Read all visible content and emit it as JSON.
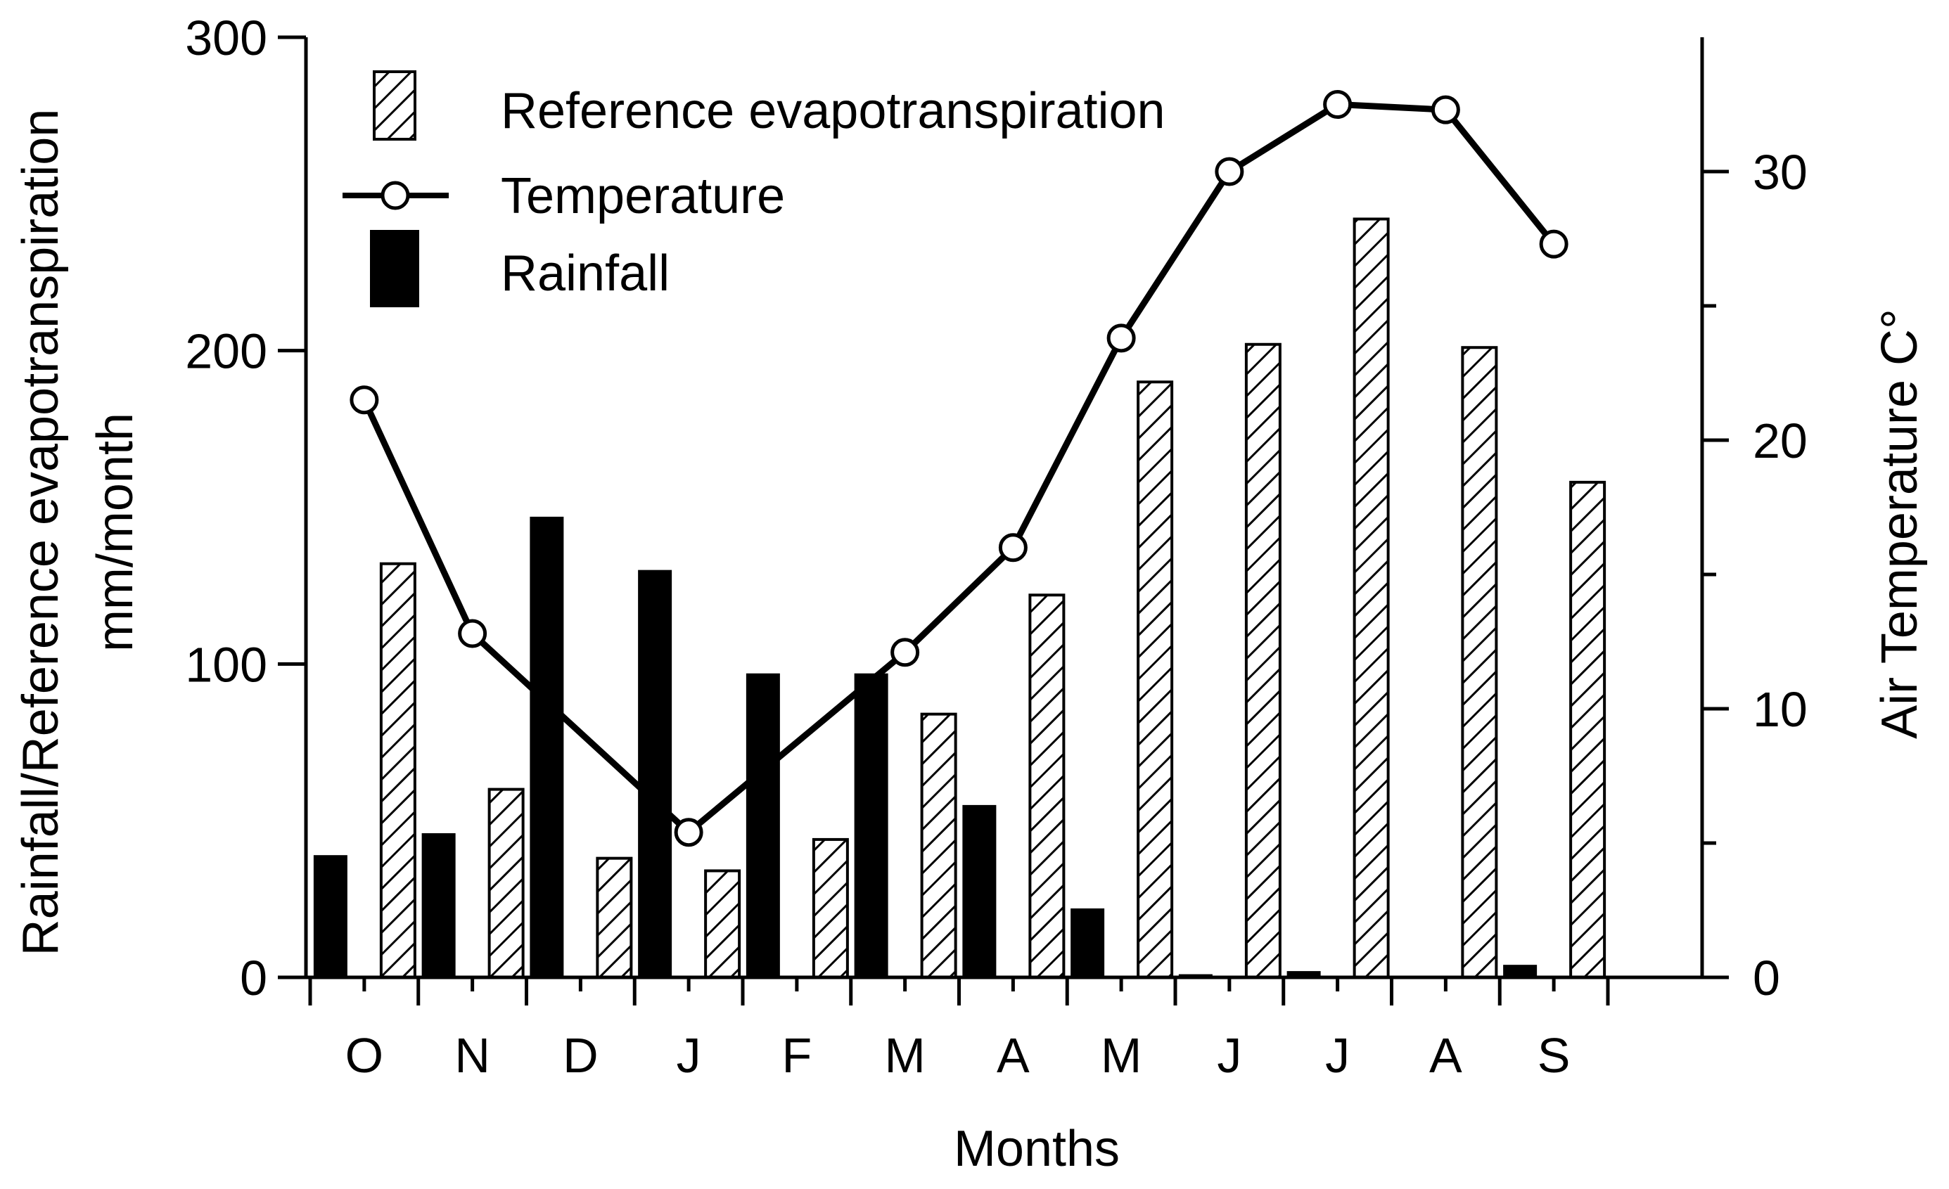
{
  "chart_data": {
    "type": "bar",
    "categories": [
      "O",
      "N",
      "D",
      "J",
      "F",
      "M",
      "A",
      "M",
      "J",
      "J",
      "A",
      "S"
    ],
    "series": [
      {
        "name": "Rainfall",
        "axis": "left",
        "kind": "bar",
        "style": "solid-black",
        "values": [
          39,
          46,
          147,
          130,
          97,
          97,
          55,
          22,
          1,
          2,
          0,
          4
        ]
      },
      {
        "name": "Reference evapotranspiration",
        "axis": "left",
        "kind": "bar",
        "style": "hatched",
        "values": [
          132,
          60,
          38,
          34,
          44,
          84,
          122,
          190,
          202,
          242,
          201,
          158
        ]
      },
      {
        "name": "Temperature",
        "axis": "right",
        "kind": "line",
        "style": "black-line-open-circles",
        "values": [
          21.5,
          12.8,
          null,
          5.4,
          null,
          12.1,
          16.0,
          23.8,
          30.0,
          32.5,
          32.3,
          27.3
        ]
      }
    ],
    "legend": {
      "position": "top-left",
      "entries": [
        "Reference evapotranspiration",
        "Temperature",
        "Rainfall"
      ]
    },
    "xlabel": "Months",
    "ylabel_lines": [
      "Rainfall/Reference evapotranspiration",
      "mm/month"
    ],
    "y2label": "Air Temperature C°",
    "ylim": [
      0,
      300
    ],
    "y_ticks": [
      "0",
      "100",
      "200",
      "300"
    ],
    "y2lim": [
      0,
      35
    ],
    "y2_ticks": [
      "0",
      "10",
      "20",
      "30"
    ],
    "grid": false
  }
}
